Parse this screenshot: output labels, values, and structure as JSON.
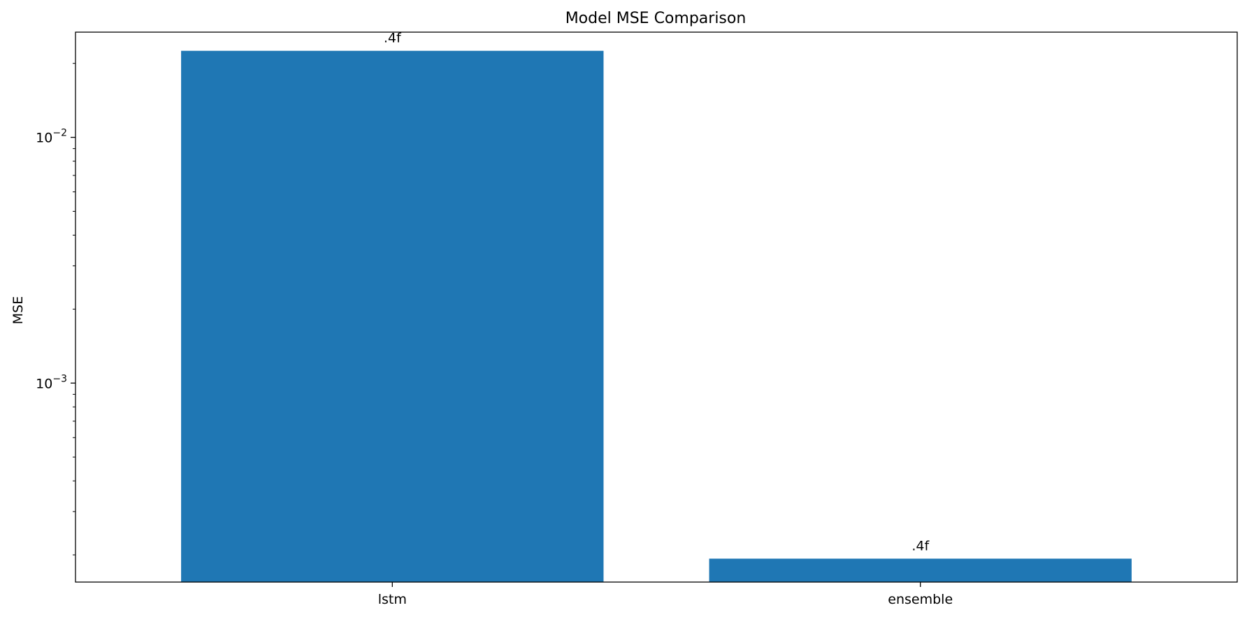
{
  "chart_data": {
    "type": "bar",
    "title": "Model MSE Comparison",
    "xlabel": "",
    "ylabel": "MSE",
    "yscale": "log",
    "ylim": [
      0.000155,
      0.0268
    ],
    "categories": [
      "lstm",
      "ensemble"
    ],
    "values": [
      0.0225,
      0.000193
    ],
    "data_labels": [
      ".4f",
      ".4f"
    ],
    "color": "#1f77b4",
    "yticks": [
      {
        "value": 0.01,
        "base": "10",
        "exp": "−2"
      },
      {
        "value": 0.001,
        "base": "10",
        "exp": "−3"
      }
    ],
    "grid": false
  }
}
